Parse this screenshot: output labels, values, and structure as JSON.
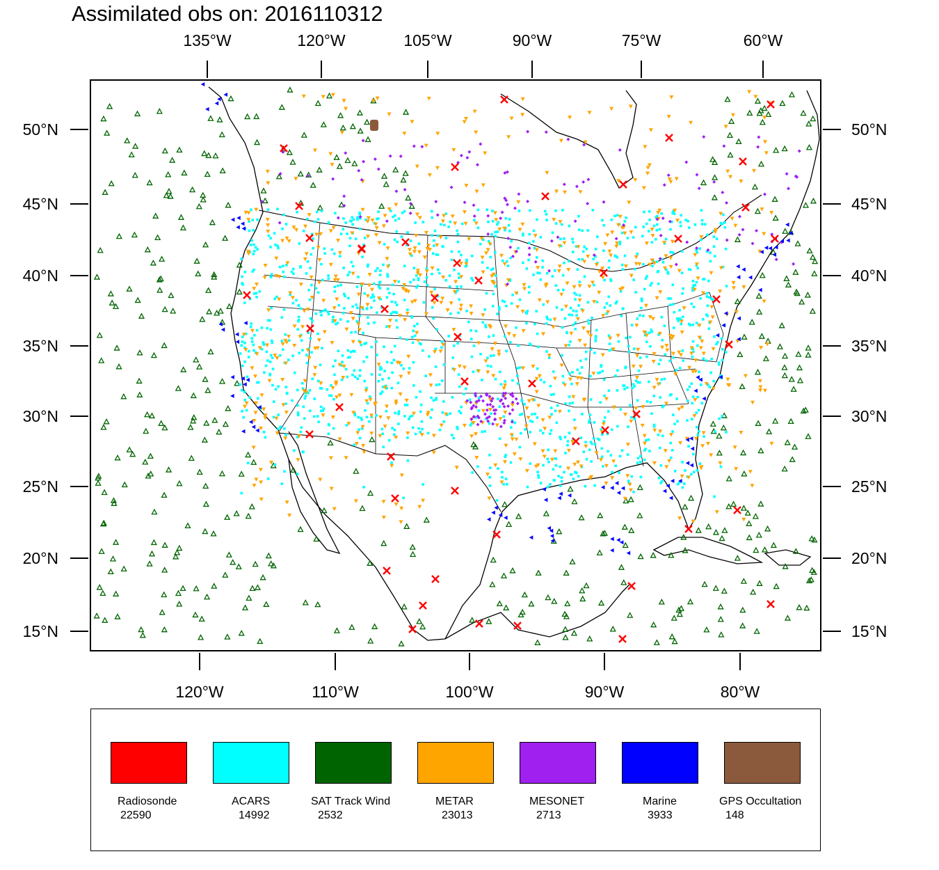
{
  "title": "Assimilated obs on: 2016110312",
  "top_axis_labels": [
    "135°W",
    "120°W",
    "105°W",
    "90°W",
    "75°W",
    "60°W"
  ],
  "bottom_axis_labels": [
    "120°W",
    "110°W",
    "100°W",
    "90°W",
    "80°W"
  ],
  "left_axis_labels": [
    "50°N",
    "45°N",
    "40°N",
    "35°N",
    "30°N",
    "25°N",
    "20°N",
    "15°N"
  ],
  "right_axis_labels": [
    "50°N",
    "45°N",
    "40°N",
    "35°N",
    "30°N",
    "25°N",
    "20°N",
    "15°N"
  ],
  "legend": [
    {
      "name": "Radiosonde",
      "count": "22590",
      "color": "#ff0000"
    },
    {
      "name": "ACARS",
      "count": "14992",
      "color": "#00ffff"
    },
    {
      "name": "SAT Track Wind",
      "count": "2532",
      "color": "#006400"
    },
    {
      "name": "METAR",
      "count": "23013",
      "color": "#ffa500"
    },
    {
      "name": "MESONET",
      "count": "2713",
      "color": "#a020f0"
    },
    {
      "name": "Marine",
      "count": "3933",
      "color": "#0000ff"
    },
    {
      "name": "GPS Occultation",
      "count": "148",
      "color": "#8b5a3c"
    }
  ],
  "colors": {
    "radiosonde": "#ff0000",
    "acars": "#00ffff",
    "sat_track_wind": "#006400",
    "metar": "#ffa500",
    "mesonet": "#a020f0",
    "marine": "#0000ff",
    "gps_occultation": "#8b5a3c"
  }
}
